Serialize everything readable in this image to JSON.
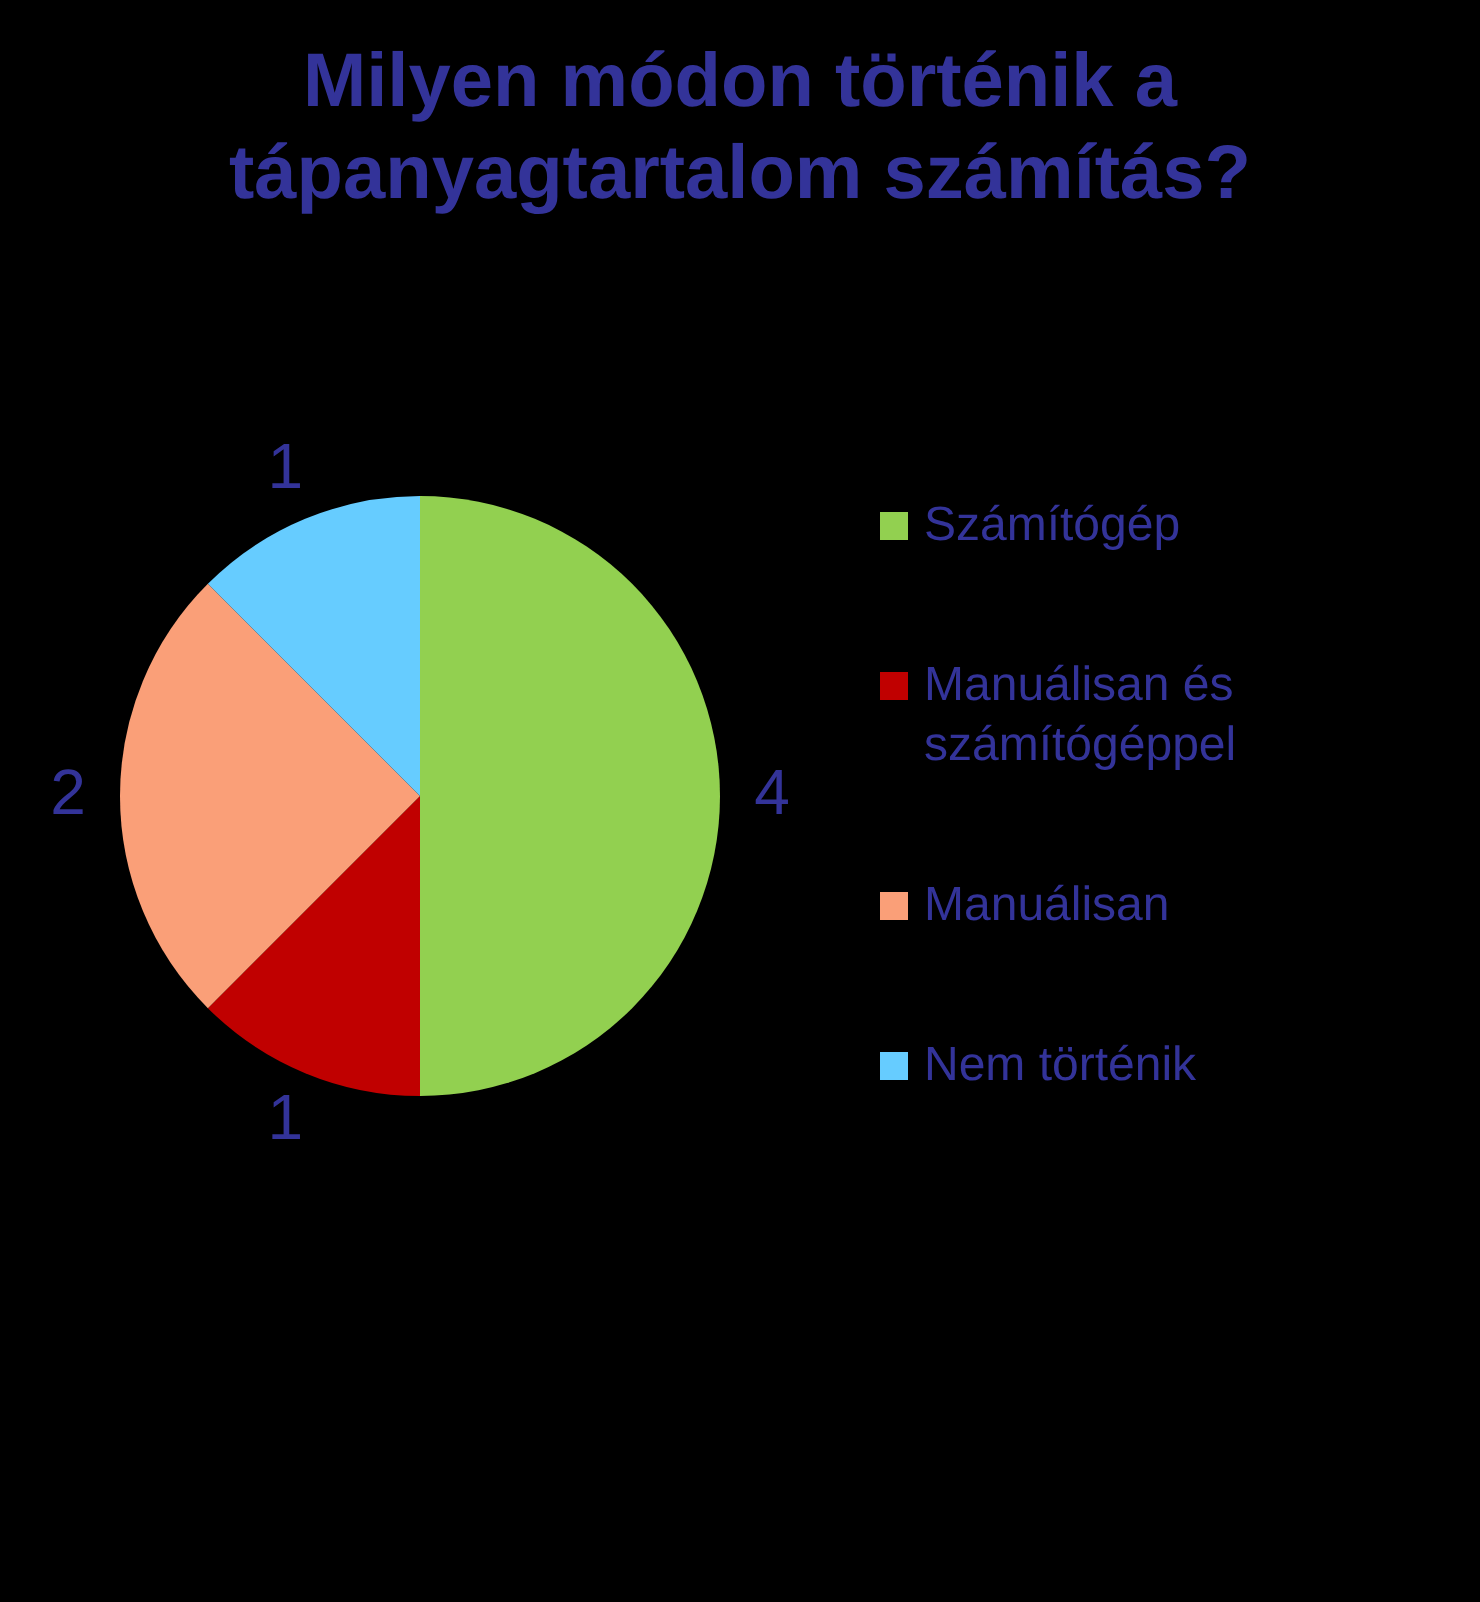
{
  "chart_data": {
    "type": "pie",
    "title": "Milyen módon történik a tápanyagtartalom számítás?",
    "categories": [
      "Számítógép",
      "Manuálisan és számítógéppel",
      "Manuálisan",
      "Nem történik"
    ],
    "values": [
      4,
      1,
      2,
      1
    ],
    "colors": [
      "#92d050",
      "#c00000",
      "#fa9f78",
      "#66ccff"
    ],
    "data_labels": true,
    "legend": "right"
  }
}
